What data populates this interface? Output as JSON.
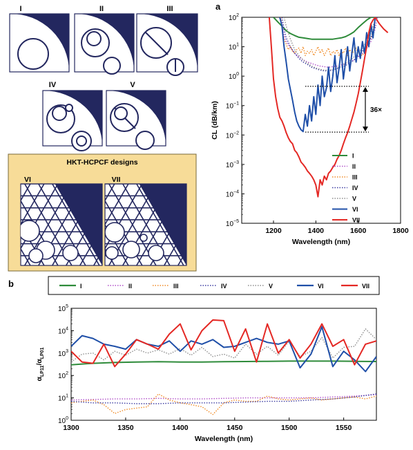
{
  "figure": {
    "panel_a_label": "a",
    "panel_b_label": "b",
    "designs": [
      {
        "label": "I",
        "shape": "single-tube"
      },
      {
        "label": "II",
        "shape": "nested-tube"
      },
      {
        "label": "III",
        "shape": "tube-with-bar"
      },
      {
        "label": "IV",
        "shape": "double-nested-tube"
      },
      {
        "label": "V",
        "shape": "multi-nested-tube"
      }
    ],
    "hkt_box": {
      "title": "HKT-HCPCF designs",
      "panels": [
        {
          "label": "VI"
        },
        {
          "label": "VII"
        }
      ],
      "background": "#f7dc98"
    },
    "design_fill": "#23275f",
    "colors": {
      "I": "#2e8b3a",
      "II": "#b04fc8",
      "III": "#f08a24",
      "IV": "#3a3aa0",
      "V": "#8c8c8c",
      "VI": "#1f4fa8",
      "VII": "#e42824"
    }
  },
  "chart_data": [
    {
      "id": "panel-a",
      "type": "line",
      "title": "",
      "xlabel": "Wavelength (nm)",
      "ylabel": "CL (dB/km)",
      "xlim": [
        1050,
        1800
      ],
      "ylim_log10": [
        -5,
        2
      ],
      "yscale": "log",
      "x_ticks": [
        1200,
        1400,
        1600,
        1800
      ],
      "y_ticks_exp": [
        -5,
        -4,
        -3,
        -2,
        -1,
        0,
        1,
        2
      ],
      "y_tick_base": "10",
      "legend_position": "bottom-right",
      "annotation": {
        "text": "36×",
        "x": 1650,
        "y_top": 0.45,
        "y_bottom": 0.0125,
        "x_start": 1350
      },
      "series": [
        {
          "name": "I",
          "style": "solid",
          "x": [
            1200,
            1220,
            1240,
            1260,
            1280,
            1300,
            1320,
            1340,
            1360,
            1380,
            1400,
            1420,
            1440,
            1460,
            1480,
            1500,
            1520,
            1540,
            1560,
            1580,
            1600,
            1620,
            1640,
            1660,
            1680
          ],
          "y": [
            100,
            70,
            50,
            35,
            28,
            24,
            21,
            20,
            19,
            18,
            18,
            18,
            18,
            18,
            18,
            19,
            20,
            22,
            26,
            32,
            45,
            60,
            80,
            100,
            100
          ]
        },
        {
          "name": "II",
          "style": "dotted",
          "x": [
            1235,
            1240,
            1250,
            1260,
            1280,
            1300,
            1320,
            1340,
            1360,
            1380,
            1400,
            1420,
            1440,
            1460,
            1480,
            1500,
            1520,
            1540,
            1560,
            1580,
            1600,
            1620,
            1640,
            1660,
            1680,
            1690
          ],
          "y": [
            100,
            60,
            25,
            15,
            9,
            6,
            4.5,
            3.6,
            3,
            2.7,
            2.4,
            2.2,
            2.1,
            2,
            2.1,
            2.2,
            2.4,
            2.7,
            3,
            3.5,
            4.5,
            6,
            9,
            15,
            40,
            100
          ]
        },
        {
          "name": "III",
          "style": "dotted",
          "x": [
            1235,
            1240,
            1250,
            1260,
            1270,
            1280,
            1290,
            1300,
            1310,
            1320,
            1330,
            1340,
            1350,
            1360,
            1370,
            1380,
            1390,
            1400,
            1410,
            1420,
            1430,
            1440,
            1450,
            1460,
            1470,
            1480,
            1490,
            1500,
            1510,
            1520,
            1530,
            1540,
            1550,
            1560,
            1570,
            1580,
            1590,
            1600,
            1620,
            1640,
            1660,
            1680
          ],
          "y": [
            100,
            40,
            18,
            12,
            8,
            10,
            7,
            6,
            8,
            9,
            6,
            10,
            5,
            7,
            6,
            8,
            5,
            7,
            10,
            6,
            8,
            5,
            7,
            9,
            5,
            7,
            6,
            8,
            5,
            7,
            6,
            9,
            5,
            8,
            6,
            7,
            9,
            6,
            5,
            10,
            20,
            60
          ]
        },
        {
          "name": "IV",
          "style": "dotted",
          "x": [
            1240,
            1250,
            1260,
            1280,
            1300,
            1320,
            1340,
            1360,
            1380,
            1400,
            1420,
            1440,
            1460,
            1480,
            1500,
            1520,
            1540,
            1560,
            1580,
            1600,
            1620,
            1640,
            1660,
            1680
          ],
          "y": [
            100,
            40,
            20,
            10,
            6,
            4,
            3,
            2.5,
            2,
            1.8,
            1.6,
            1.5,
            1.5,
            1.6,
            1.8,
            2,
            2.3,
            2.8,
            3.5,
            5,
            7,
            11,
            20,
            50
          ]
        },
        {
          "name": "V",
          "style": "dotted",
          "x": [
            1250,
            1260,
            1280,
            1300,
            1320,
            1340,
            1360,
            1380,
            1400,
            1420,
            1440,
            1460,
            1480,
            1500,
            1520,
            1540,
            1560,
            1580,
            1600,
            1620,
            1640,
            1660,
            1680
          ],
          "y": [
            100,
            50,
            18,
            8,
            5,
            3.5,
            2.8,
            2.2,
            1.9,
            1.7,
            1.6,
            1.6,
            1.7,
            1.9,
            2.2,
            2.7,
            3.3,
            4.5,
            6,
            9,
            15,
            30,
            80
          ]
        },
        {
          "name": "VI",
          "style": "solid",
          "x": [
            1230,
            1240,
            1250,
            1260,
            1270,
            1280,
            1290,
            1300,
            1310,
            1320,
            1330,
            1340,
            1350,
            1360,
            1370,
            1380,
            1390,
            1400,
            1410,
            1420,
            1430,
            1440,
            1450,
            1460,
            1470,
            1480,
            1490,
            1500,
            1510,
            1520,
            1530,
            1540,
            1550,
            1560,
            1570,
            1580,
            1590,
            1600,
            1610,
            1620,
            1630,
            1640,
            1650,
            1660,
            1670,
            1680
          ],
          "y": [
            100,
            50,
            10,
            3,
            0.8,
            0.35,
            0.15,
            0.06,
            0.03,
            0.02,
            0.015,
            0.013,
            0.05,
            0.02,
            0.1,
            0.03,
            0.2,
            0.05,
            0.5,
            0.1,
            1,
            0.2,
            0.4,
            2,
            0.3,
            1,
            5,
            0.6,
            2,
            8,
            0.8,
            3,
            10,
            1.5,
            6,
            20,
            3,
            10,
            4,
            15,
            6,
            30,
            10,
            60,
            20,
            100
          ]
        },
        {
          "name": "VII",
          "style": "solid",
          "x": [
            1180,
            1190,
            1200,
            1210,
            1220,
            1230,
            1240,
            1250,
            1260,
            1270,
            1280,
            1290,
            1300,
            1310,
            1320,
            1330,
            1340,
            1350,
            1360,
            1370,
            1380,
            1390,
            1400,
            1410,
            1420,
            1430,
            1440,
            1450,
            1460,
            1470,
            1480,
            1490,
            1500,
            1510,
            1520,
            1530,
            1540,
            1550,
            1560,
            1570,
            1580,
            1590,
            1600,
            1610,
            1620,
            1630,
            1640,
            1650,
            1660,
            1670,
            1680,
            1700,
            1720,
            1740
          ],
          "y": [
            100,
            10,
            0.8,
            0.2,
            0.08,
            0.04,
            0.03,
            0.02,
            0.012,
            0.008,
            0.006,
            0.005,
            0.003,
            0.0025,
            0.0018,
            0.0012,
            0.001,
            0.0008,
            0.0006,
            0.0005,
            0.0004,
            0.0003,
            0.0002,
            8e-05,
            0.0003,
            0.0002,
            0.0004,
            0.0003,
            0.0005,
            0.0006,
            0.0008,
            0.001,
            0.0015,
            0.002,
            0.003,
            0.005,
            0.008,
            0.012,
            0.02,
            0.035,
            0.06,
            0.12,
            0.25,
            0.6,
            1.5,
            4,
            10,
            30,
            60,
            80,
            100,
            60,
            40,
            30
          ]
        }
      ]
    },
    {
      "id": "panel-b",
      "type": "line",
      "title": "",
      "xlabel": "Wavelength (nm)",
      "ylabel_main": "α",
      "ylabel_sub1": "LP11",
      "ylabel_sep": "/α",
      "ylabel_sub2": "LP01",
      "xlim": [
        1300,
        1580
      ],
      "ylim_log10": [
        0,
        5
      ],
      "yscale": "log",
      "x_ticks": [
        1300,
        1350,
        1400,
        1450,
        1500,
        1550
      ],
      "y_ticks_exp": [
        0,
        1,
        2,
        3,
        4,
        5
      ],
      "y_tick_base": "10",
      "legend_position": "top",
      "series": [
        {
          "name": "I",
          "style": "solid",
          "x": [
            1300,
            1320,
            1340,
            1360,
            1380,
            1400,
            1420,
            1440,
            1460,
            1480,
            1500,
            1520,
            1540,
            1560,
            1580
          ],
          "y": [
            300,
            350,
            380,
            400,
            410,
            400,
            400,
            410,
            420,
            430,
            440,
            440,
            440,
            430,
            420
          ]
        },
        {
          "name": "II",
          "style": "dotted",
          "x": [
            1300,
            1320,
            1340,
            1360,
            1380,
            1400,
            1420,
            1440,
            1460,
            1480,
            1500,
            1520,
            1540,
            1560,
            1580
          ],
          "y": [
            8,
            8.5,
            9,
            9,
            9.5,
            9,
            9,
            9.5,
            10,
            10,
            10,
            10,
            11,
            12,
            14
          ]
        },
        {
          "name": "III",
          "style": "dotted",
          "x": [
            1300,
            1310,
            1320,
            1330,
            1340,
            1350,
            1360,
            1370,
            1380,
            1390,
            1400,
            1410,
            1420,
            1430,
            1440,
            1450,
            1460,
            1470,
            1480,
            1490,
            1500,
            1510,
            1520,
            1530,
            1540,
            1550,
            1560,
            1570,
            1580
          ],
          "y": [
            6,
            7,
            8,
            5,
            2,
            3,
            3.5,
            4,
            15,
            8,
            6,
            5,
            4,
            1.8,
            6,
            8,
            7,
            7,
            12,
            9,
            8,
            9,
            10,
            8,
            9,
            10,
            11,
            9,
            12
          ]
        },
        {
          "name": "IV",
          "style": "dotted",
          "x": [
            1300,
            1320,
            1340,
            1360,
            1380,
            1400,
            1420,
            1440,
            1460,
            1480,
            1500,
            1520,
            1540,
            1560,
            1580
          ],
          "y": [
            7,
            6,
            6,
            5.5,
            5.5,
            6,
            6,
            6,
            6.5,
            7,
            7,
            8,
            9,
            11,
            15
          ]
        },
        {
          "name": "V",
          "style": "dotted",
          "x": [
            1300,
            1310,
            1320,
            1330,
            1340,
            1350,
            1360,
            1370,
            1380,
            1390,
            1400,
            1410,
            1420,
            1430,
            1440,
            1450,
            1460,
            1470,
            1480,
            1490,
            1500,
            1510,
            1520,
            1530,
            1540,
            1550,
            1560,
            1570,
            1580
          ],
          "y": [
            400,
            900,
            1000,
            500,
            1200,
            800,
            1500,
            1000,
            1400,
            900,
            1600,
            800,
            1800,
            700,
            900,
            600,
            2500,
            900,
            2000,
            800,
            3500,
            700,
            1200,
            5000,
            600,
            1800,
            2000,
            12000,
            4000
          ]
        },
        {
          "name": "VI",
          "style": "solid",
          "x": [
            1300,
            1310,
            1320,
            1330,
            1340,
            1350,
            1360,
            1370,
            1380,
            1390,
            1400,
            1410,
            1420,
            1430,
            1440,
            1450,
            1460,
            1470,
            1480,
            1490,
            1500,
            1510,
            1520,
            1530,
            1540,
            1550,
            1560,
            1570,
            1580
          ],
          "y": [
            2000,
            6000,
            4500,
            2500,
            2000,
            1500,
            4000,
            2500,
            2000,
            3500,
            1200,
            3500,
            2500,
            4000,
            1800,
            2000,
            3000,
            4500,
            3000,
            2500,
            3500,
            220,
            900,
            15000,
            250,
            1200,
            500,
            150,
            700
          ]
        },
        {
          "name": "VII",
          "style": "solid",
          "x": [
            1300,
            1310,
            1320,
            1330,
            1340,
            1350,
            1360,
            1370,
            1380,
            1390,
            1400,
            1410,
            1420,
            1430,
            1440,
            1450,
            1460,
            1470,
            1480,
            1490,
            1500,
            1510,
            1520,
            1530,
            1540,
            1550,
            1560,
            1570,
            1580
          ],
          "y": [
            1200,
            400,
            350,
            2500,
            250,
            900,
            4000,
            2500,
            1500,
            7000,
            20000,
            1400,
            10000,
            30000,
            28000,
            1200,
            12000,
            400,
            20000,
            1000,
            4000,
            600,
            2500,
            20000,
            2000,
            4000,
            300,
            2500,
            3500
          ]
        }
      ]
    }
  ]
}
